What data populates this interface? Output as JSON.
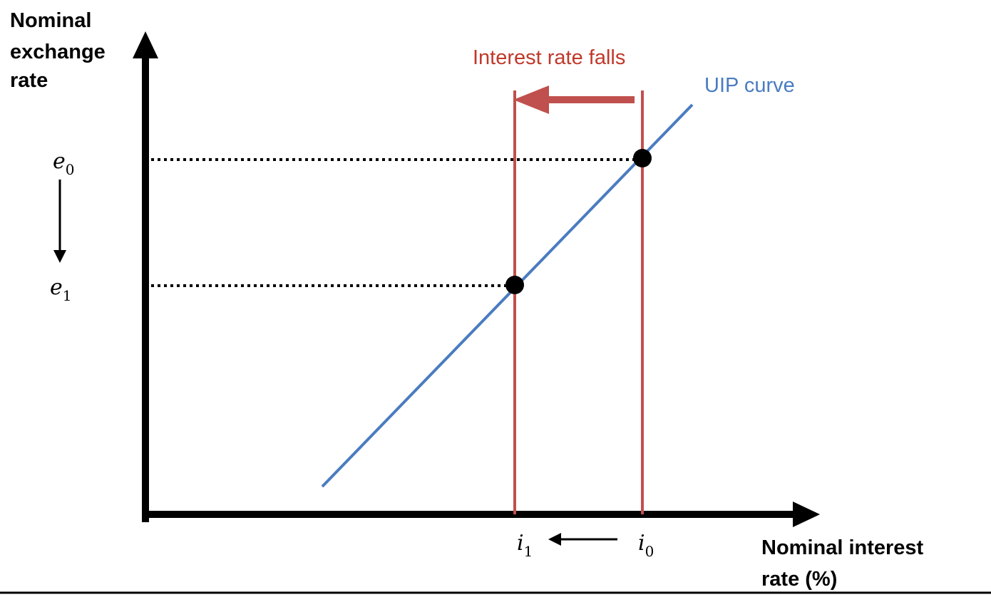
{
  "axes": {
    "y_label_lines": [
      "Nominal",
      "exchange",
      "rate"
    ],
    "x_label_lines": [
      "Nominal interest",
      "rate (%)"
    ]
  },
  "curve": {
    "label": "UIP curve",
    "color": "#4a7cc0"
  },
  "shift": {
    "label": "Interest rate falls",
    "label_color": "#c0392b",
    "line_color": "#c0504d"
  },
  "points": [
    {
      "exchange_rate_symbol": "e",
      "exchange_rate_subscript": "0",
      "interest_rate_symbol": "i",
      "interest_rate_subscript": "0"
    },
    {
      "exchange_rate_symbol": "e",
      "exchange_rate_subscript": "1",
      "interest_rate_symbol": "i",
      "interest_rate_subscript": "1"
    }
  ],
  "colors": {
    "axis": "#000000",
    "point": "#000000",
    "guide": "#000000",
    "background": "#ffffff"
  }
}
